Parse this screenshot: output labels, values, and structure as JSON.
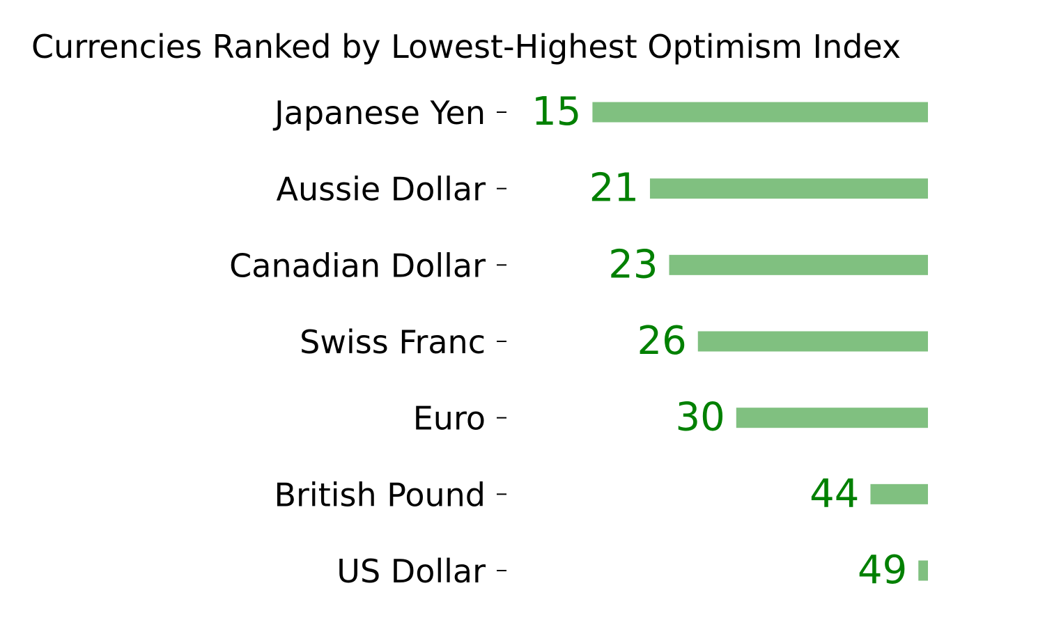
{
  "chart_data": {
    "type": "bar",
    "orientation": "horizontal",
    "title": "Currencies Ranked by Lowest-Highest Optimism Index",
    "xlabel": "",
    "ylabel": "",
    "categories": [
      "Japanese Yen",
      "Aussie Dollar",
      "Canadian Dollar",
      "Swiss Franc",
      "Euro",
      "British Pound",
      "US Dollar"
    ],
    "values": [
      15,
      21,
      23,
      26,
      30,
      44,
      49
    ],
    "bar_direction": "right-to-left",
    "bar_anchor_value": 50,
    "grid": false,
    "legend": "none",
    "colors": {
      "bar": "#80c080",
      "value_label": "#008000",
      "text": "#000000"
    }
  }
}
